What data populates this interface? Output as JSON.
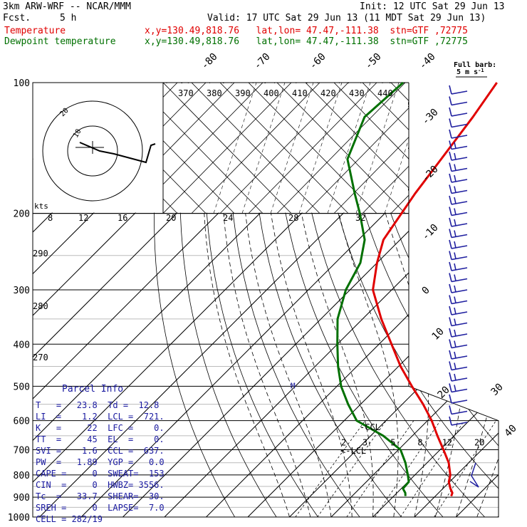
{
  "header": {
    "model": "3km ARW-WRF -- NCAR/MMM",
    "init": "Init: 12 UTC Sat 29 Jun 13",
    "fcst_label": "Fcst.",
    "fcst_value": "5 h",
    "valid": "Valid: 17 UTC Sat 29 Jun 13 (11 MDT Sat 29 Jun 13)",
    "temp_label": "Temperature",
    "temp_loc": "x,y=130.49,818.76   lat,lon= 47.47,-111.38  stn=GTF ,72775",
    "dew_label": "Dewpoint temperature",
    "dew_loc": "x,y=130.49,818.76   lat,lon= 47.47,-111.38  stn=GTF ,72775"
  },
  "colors": {
    "temperature": "#e00000",
    "dewpoint": "#007000",
    "barbs": "#2020a0",
    "parcel_text": "#1a1aa0",
    "grid": "#000000"
  },
  "chart_data": {
    "type": "line",
    "pressure_ticks": [
      "100",
      "200",
      "300",
      "400",
      "500",
      "600",
      "700",
      "800",
      "900",
      "1000"
    ],
    "pressure_values": [
      100,
      200,
      300,
      400,
      500,
      600,
      700,
      800,
      900,
      1000
    ],
    "isotherm_labels": [
      "-80",
      "-70",
      "-60",
      "-50",
      "-40",
      "-30",
      "-20",
      "-10",
      "0",
      "10",
      "20",
      "30",
      "40"
    ],
    "theta_labels": [
      "370",
      "380",
      "390",
      "400",
      "410",
      "420",
      "430",
      "440"
    ],
    "mixing_ratio_labels": [
      "2",
      "3",
      "5",
      "8",
      "12",
      "20"
    ],
    "inset_labels": [
      "8",
      "12",
      "16",
      "20",
      "24",
      "28",
      "32"
    ],
    "inset_kts_label": "kts",
    "left_theta_labels": [
      "290",
      "280",
      "270"
    ],
    "full_barb_note": "Full barb:",
    "full_barb_value": "5 m s",
    "full_barb_exp": "-1",
    "hodograph_labels": [
      "10",
      "20"
    ],
    "ccl_label": "-CCL",
    "lcl_label": "<-LCL",
    "series": [
      {
        "name": "Temperature",
        "pressure": [
          100,
          120,
          150,
          180,
          200,
          230,
          260,
          300,
          350,
          400,
          450,
          500,
          550,
          600,
          650,
          700,
          750,
          800,
          830,
          860,
          880,
          895
        ],
        "temperature_c": [
          -64.5,
          -62.0,
          -59.5,
          -57.5,
          -56.0,
          -54.0,
          -50.0,
          -44.5,
          -35.5,
          -27.0,
          -19.5,
          -12.0,
          -5.0,
          1.0,
          6.0,
          10.8,
          15.2,
          18.5,
          19.8,
          21.8,
          23.3,
          23.8
        ]
      },
      {
        "name": "Dewpoint temperature",
        "pressure": [
          100,
          120,
          150,
          180,
          200,
          230,
          260,
          300,
          350,
          400,
          450,
          500,
          550,
          600,
          650,
          700,
          750,
          800,
          830,
          860,
          880,
          895
        ],
        "temperature_c": [
          -87.0,
          -88.0,
          -82.0,
          -72.0,
          -66.0,
          -58.5,
          -54.0,
          -51.0,
          -46.0,
          -40.0,
          -34.5,
          -29.0,
          -23.0,
          -17.0,
          -7.0,
          0.5,
          4.8,
          8.3,
          10.2,
          10.4,
          12.0,
          12.8
        ]
      }
    ]
  },
  "parcel": {
    "title": "Parcel Info",
    "rows": [
      "T   =   23.8  Td =  12.8",
      "LI  =    1.2  LCL =  721.",
      "K   =     22  LFC =    0.",
      "TT  =     45  EL  =    0.",
      "SVI =    1.6  CCL =  637.",
      "PW  =   1.89  YGP =   0.0",
      "CAPE =     0  SWEAT=  153",
      "CIN  =     0  HWBZ= 3556.",
      "Tc  =   33.7  SHEAR=  30.",
      "SREH =     0  LAPSE=  7.0",
      "CELL = 282/19"
    ]
  }
}
